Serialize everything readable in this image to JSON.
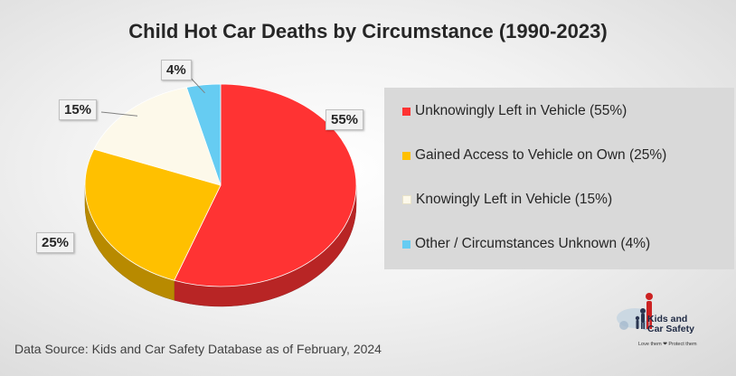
{
  "chart_data": {
    "type": "pie",
    "title": "Child Hot Car Deaths by Circumstance (1990-2023)",
    "slices": [
      {
        "label": "Unknowingly Left in Vehicle (55%)",
        "value": 55,
        "display": "55%",
        "color": "#ff3333"
      },
      {
        "label": "Gained Access to Vehicle on Own (25%)",
        "value": 25,
        "display": "25%",
        "color": "#ffc000"
      },
      {
        "label": "Knowingly Left in Vehicle (15%)",
        "value": 15,
        "display": "15%",
        "color": "#fdf9ea"
      },
      {
        "label": "Other / Circumstances Unknown (4%)",
        "value": 4,
        "display": "4%",
        "color": "#66ccf2"
      }
    ],
    "legend_position": "right"
  },
  "source_note": "Data Source: Kids and Car Safety Database as of February, 2024",
  "logo": {
    "line1": "Kids and",
    "line2": "Car Safety",
    "tagline": "Love them ❤ Protect them"
  }
}
